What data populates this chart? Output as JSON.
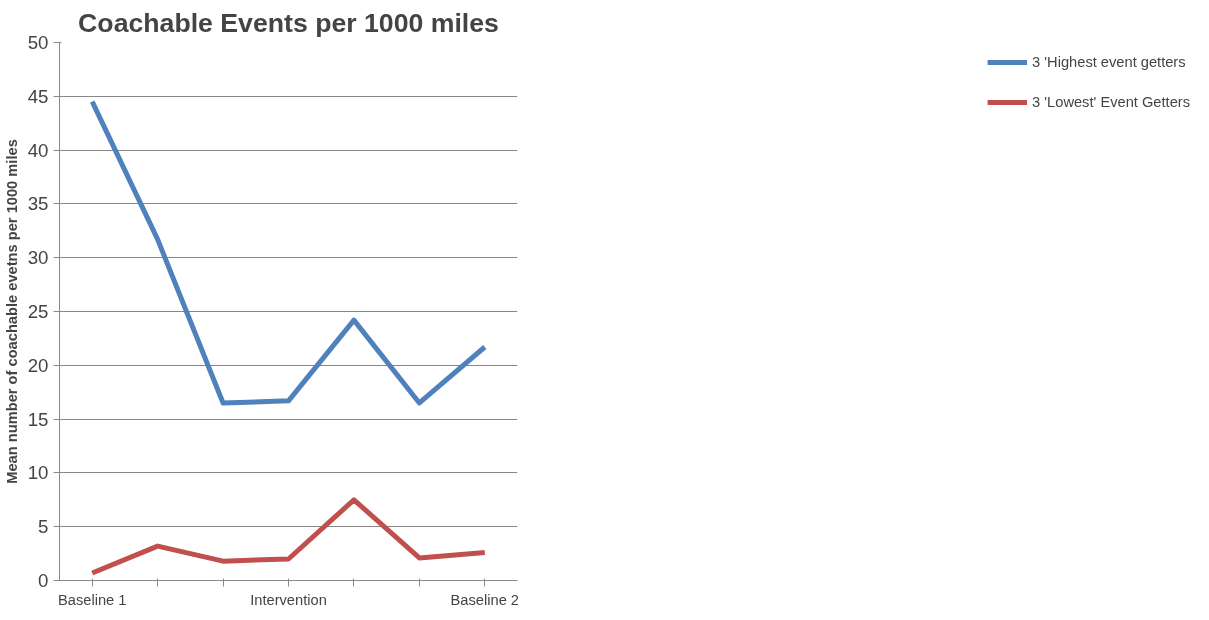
{
  "chart_data": {
    "type": "line",
    "title": "Coachable Events per 1000 miles",
    "ylabel": "Mean number of coachable evetns per 1000 miles",
    "categories": [
      "Baseline 1",
      null,
      null,
      "Intervention",
      null,
      null,
      "Baseline 2"
    ],
    "series": [
      {
        "name": "3 'Highest event getters",
        "color": "#4f81bd",
        "values": [
          44.5,
          31.7,
          16.5,
          16.7,
          24.2,
          16.5,
          21.7
        ]
      },
      {
        "name": "3 'Lowest' Event Getters",
        "color": "#c0504d",
        "values": [
          0.7,
          3.2,
          1.8,
          2.0,
          7.5,
          2.1,
          2.6
        ]
      }
    ],
    "ylim": [
      0,
      50
    ],
    "yticks": [
      0,
      5,
      10,
      15,
      20,
      25,
      30,
      35,
      40,
      45,
      50
    ],
    "grid": "y",
    "legend": "right",
    "marker": "none",
    "line_style": "solid"
  }
}
